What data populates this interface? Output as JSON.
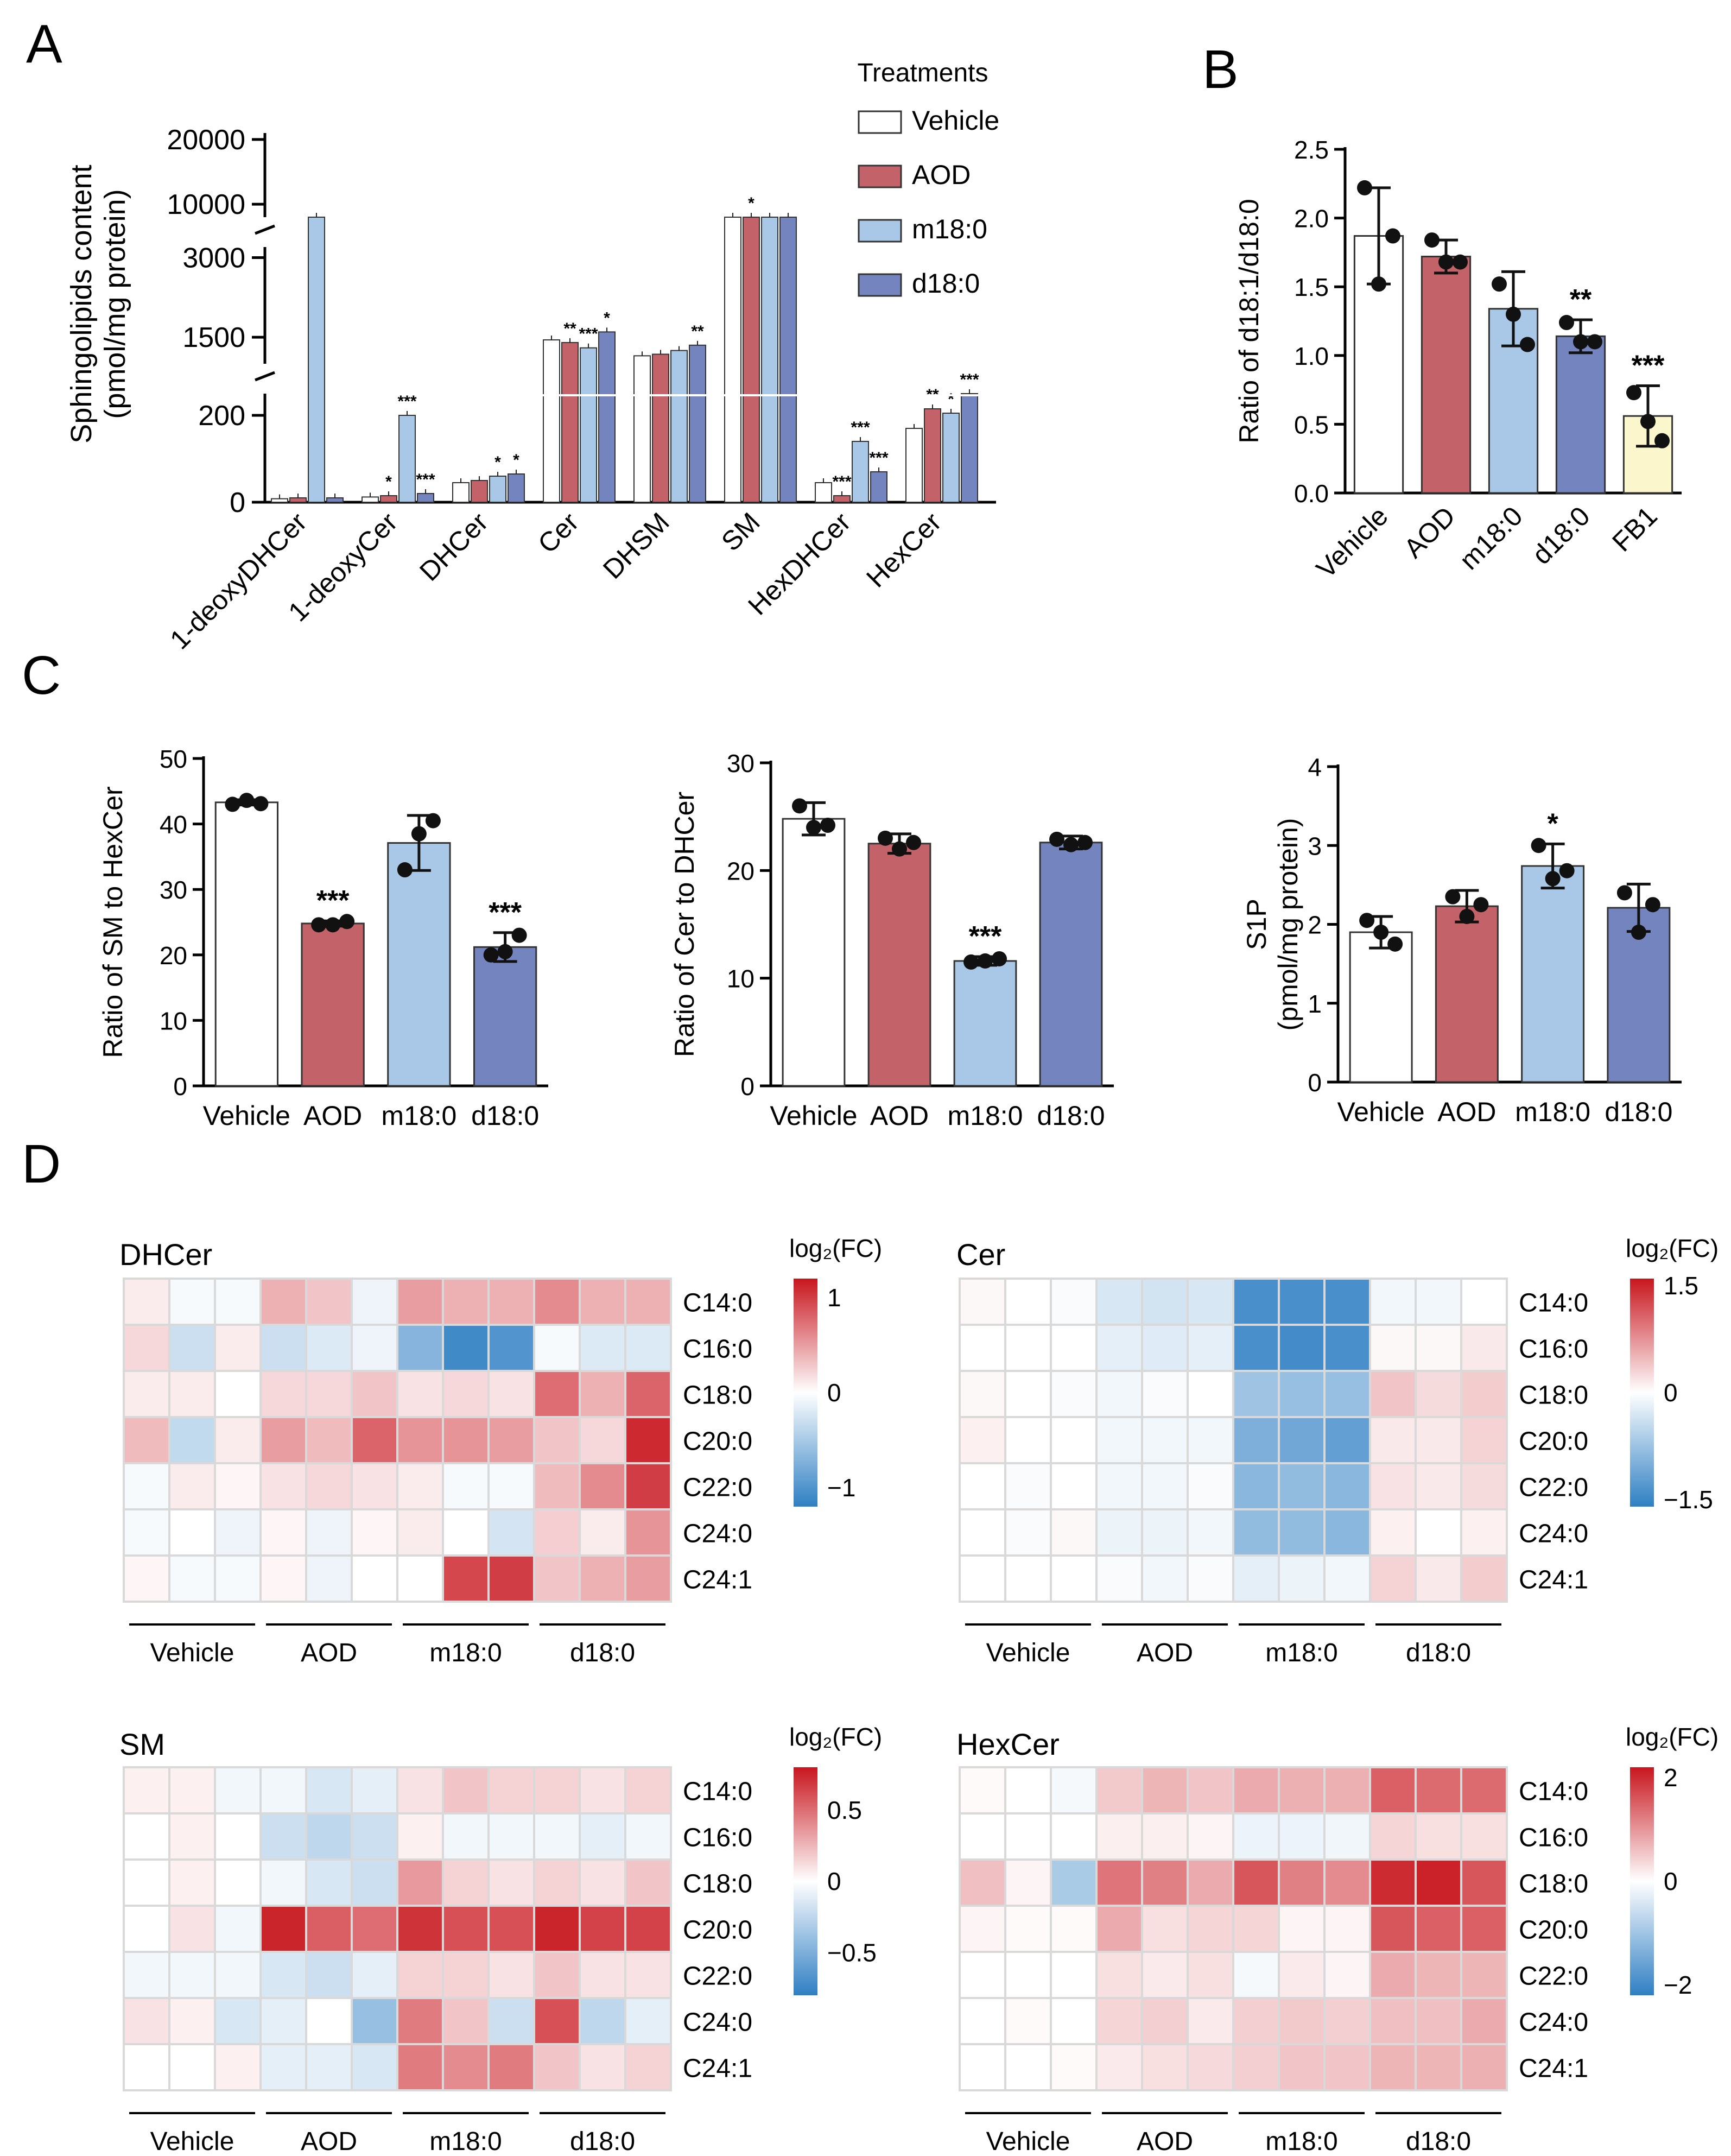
{
  "panel_labels": {
    "A": "A",
    "B": "B",
    "C": "C",
    "D": "D"
  },
  "colors": {
    "vehicle": "#ffffff",
    "aod": "#c4626a",
    "m18": "#a9c7e6",
    "d18": "#7484bf",
    "fb1": "#fbf6cc",
    "bar_stroke": "#333333",
    "heat_pos": "#c8161e",
    "heat_neg": "#2f7fc3",
    "heat_mid": "#ffffff",
    "grid": "#d9d9d9"
  },
  "chart_data": [
    {
      "id": "A",
      "type": "bar",
      "title": "",
      "ylabel_line1": "Sphingolipids content",
      "ylabel_line2": "(pmol/mg protein)",
      "legend_title": "Treatments",
      "series_names": [
        "Vehicle",
        "AOD",
        "m18:0",
        "d18:0"
      ],
      "categories": [
        "1-deoxyDHCer",
        "1-deoxyCer",
        "DHCer",
        "Cer",
        "DHSM",
        "SM",
        "HexDHCer",
        "HexCer"
      ],
      "broken_axis_segments": [
        {
          "range": [
            0,
            250
          ],
          "ticks": [
            0,
            200
          ]
        },
        {
          "range": [
            1000,
            3200
          ],
          "ticks": [
            1500,
            3000
          ]
        },
        {
          "range": [
            8000,
            21000
          ],
          "ticks": [
            10000,
            20000
          ]
        }
      ],
      "series": [
        {
          "name": "Vehicle",
          "values": [
            8,
            12,
            45,
            1450,
            1150,
            7000,
            45,
            170
          ]
        },
        {
          "name": "AOD",
          "values": [
            10,
            15,
            50,
            1400,
            1180,
            6800,
            15,
            215
          ]
        },
        {
          "name": "m18:0",
          "values": [
            7000,
            200,
            60,
            1300,
            1250,
            7200,
            140,
            205
          ]
        },
        {
          "name": "d18:0",
          "values": [
            10,
            20,
            65,
            1600,
            1350,
            6900,
            70,
            275
          ]
        }
      ],
      "significance": [
        [
          "",
          "",
          "",
          ""
        ],
        [
          "",
          "*",
          "***",
          "***"
        ],
        [
          "",
          "",
          "*",
          "*"
        ],
        [
          "",
          "**",
          "***",
          "*"
        ],
        [
          "",
          "",
          "",
          "**"
        ],
        [
          "",
          "*",
          "",
          ""
        ],
        [
          "",
          "***",
          "***",
          "***"
        ],
        [
          "",
          "**",
          "*",
          "***"
        ]
      ]
    },
    {
      "id": "B",
      "type": "bar",
      "ylabel": "Ratio of d18:1/d18:0",
      "categories": [
        "Vehicle",
        "AOD",
        "m18:0",
        "d18:0",
        "FB1"
      ],
      "values": [
        1.87,
        1.72,
        1.34,
        1.14,
        0.56
      ],
      "errors": [
        0.35,
        0.12,
        0.27,
        0.12,
        0.22
      ],
      "points": [
        [
          2.22,
          1.52,
          1.87
        ],
        [
          1.84,
          1.68,
          1.68
        ],
        [
          1.52,
          1.3,
          1.08
        ],
        [
          1.24,
          1.1,
          1.1
        ],
        [
          0.73,
          0.52,
          0.38
        ]
      ],
      "significance": [
        "",
        "",
        "",
        "**",
        "***"
      ],
      "ylim": [
        0,
        2.5
      ],
      "yticks": [
        "0.0",
        "0.5",
        "1.0",
        "1.5",
        "2.0",
        "2.5"
      ]
    },
    {
      "id": "C1",
      "type": "bar",
      "ylabel": "Ratio of SM to HexCer",
      "categories": [
        "Vehicle",
        "AOD",
        "m18:0",
        "d18:0"
      ],
      "values": [
        43.3,
        24.8,
        37.1,
        21.2
      ],
      "errors": [
        0.4,
        0.4,
        4.2,
        2.2
      ],
      "points": [
        [
          43.0,
          43.6,
          43.1
        ],
        [
          24.6,
          24.6,
          25.1
        ],
        [
          33.0,
          38.5,
          40.5
        ],
        [
          20.0,
          20.5,
          23.0
        ]
      ],
      "significance": [
        "",
        "***",
        "",
        "***"
      ],
      "ylim": [
        0,
        50
      ],
      "yticks": [
        "0",
        "10",
        "20",
        "30",
        "40",
        "50"
      ]
    },
    {
      "id": "C2",
      "type": "bar",
      "ylabel": "Ratio of Cer to DHCer",
      "categories": [
        "Vehicle",
        "AOD",
        "m18:0",
        "d18:0"
      ],
      "values": [
        24.8,
        22.5,
        11.6,
        22.6
      ],
      "errors": [
        1.5,
        0.9,
        0.4,
        0.6
      ],
      "points": [
        [
          26.0,
          24.0,
          24.2
        ],
        [
          23.0,
          22.0,
          22.6
        ],
        [
          11.5,
          11.6,
          11.8
        ],
        [
          22.9,
          22.4,
          22.6
        ]
      ],
      "significance": [
        "",
        "",
        "***",
        ""
      ],
      "ylim": [
        0,
        30
      ],
      "yticks": [
        "0",
        "10",
        "20",
        "30"
      ]
    },
    {
      "id": "C3",
      "type": "bar",
      "ylabel_line1": "S1P",
      "ylabel_line2": "(pmol/mg protein)",
      "categories": [
        "Vehicle",
        "AOD",
        "m18:0",
        "d18:0"
      ],
      "values": [
        1.9,
        2.23,
        2.74,
        2.21
      ],
      "errors": [
        0.2,
        0.2,
        0.28,
        0.3
      ],
      "points": [
        [
          2.05,
          1.9,
          1.75
        ],
        [
          2.35,
          2.1,
          2.25
        ],
        [
          3.0,
          2.58,
          2.68
        ],
        [
          2.4,
          1.9,
          2.25
        ]
      ],
      "significance": [
        "",
        "",
        "*",
        ""
      ],
      "ylim": [
        0,
        4
      ],
      "yticks": [
        "0",
        "1",
        "2",
        "3",
        "4"
      ]
    },
    {
      "id": "D-DHCer",
      "type": "heatmap",
      "title": "DHCer",
      "rows": [
        "C14:0",
        "C16:0",
        "C18:0",
        "C20:0",
        "C22:0",
        "C24:0",
        "C24:1"
      ],
      "groups": [
        "Vehicle",
        "AOD",
        "m18:0",
        "d18:0"
      ],
      "scale_label": "log₂(FC)",
      "scale_max": 1.2,
      "scale_ticks": [
        "1",
        "0",
        "−1"
      ],
      "scale_tick_values": [
        1,
        0,
        -1
      ],
      "values": [
        [
          0.1,
          -0.05,
          -0.05,
          0.4,
          0.3,
          -0.1,
          0.5,
          0.4,
          0.4,
          0.6,
          0.4,
          0.4
        ],
        [
          0.2,
          -0.3,
          0.1,
          -0.3,
          -0.2,
          -0.1,
          -0.7,
          -1.1,
          -1.0,
          -0.05,
          -0.2,
          -0.2
        ],
        [
          0.1,
          0.1,
          0.0,
          0.2,
          0.2,
          0.3,
          0.15,
          0.2,
          0.15,
          0.75,
          0.4,
          0.8
        ],
        [
          0.35,
          -0.35,
          0.1,
          0.5,
          0.35,
          0.8,
          0.55,
          0.55,
          0.5,
          0.3,
          0.2,
          1.1
        ],
        [
          -0.05,
          0.1,
          0.05,
          0.15,
          0.2,
          0.15,
          0.1,
          -0.05,
          -0.05,
          0.35,
          0.6,
          1.0
        ],
        [
          -0.05,
          0.0,
          -0.1,
          0.05,
          -0.1,
          0.05,
          0.1,
          0.0,
          -0.25,
          0.25,
          0.1,
          0.55
        ],
        [
          0.05,
          -0.05,
          -0.05,
          0.05,
          -0.1,
          0.0,
          0.0,
          0.95,
          1.0,
          0.3,
          0.4,
          0.5
        ]
      ]
    },
    {
      "id": "D-Cer",
      "type": "heatmap",
      "title": "Cer",
      "rows": [
        "C14:0",
        "C16:0",
        "C18:0",
        "C20:0",
        "C22:0",
        "C24:0",
        "C24:1"
      ],
      "groups": [
        "Vehicle",
        "AOD",
        "m18:0",
        "d18:0"
      ],
      "scale_label": "log₂(FC)",
      "scale_max": 1.6,
      "scale_ticks": [
        "1.5",
        "0",
        "−1.5"
      ],
      "scale_tick_values": [
        1.5,
        0,
        -1.5
      ],
      "values": [
        [
          0.05,
          0.0,
          -0.05,
          -0.3,
          -0.35,
          -0.3,
          -1.4,
          -1.4,
          -1.4,
          -0.1,
          -0.1,
          0.0
        ],
        [
          0.0,
          0.0,
          0.0,
          -0.2,
          -0.25,
          -0.2,
          -1.4,
          -1.45,
          -1.4,
          0.05,
          0.05,
          0.15
        ],
        [
          0.05,
          0.0,
          -0.05,
          -0.1,
          -0.05,
          0.0,
          -0.75,
          -0.8,
          -0.8,
          0.4,
          0.25,
          0.35
        ],
        [
          0.1,
          0.0,
          0.0,
          -0.1,
          -0.1,
          -0.1,
          -1.0,
          -1.1,
          -1.2,
          0.15,
          0.15,
          0.3
        ],
        [
          0.0,
          -0.05,
          0.0,
          -0.1,
          -0.1,
          -0.05,
          -0.9,
          -0.85,
          -0.9,
          0.2,
          0.15,
          0.25
        ],
        [
          0.0,
          -0.05,
          0.05,
          -0.15,
          -0.15,
          -0.1,
          -0.85,
          -0.85,
          -0.9,
          0.1,
          0.0,
          0.1
        ],
        [
          0.0,
          0.0,
          0.0,
          -0.05,
          -0.1,
          -0.05,
          -0.2,
          -0.15,
          -0.1,
          0.3,
          0.15,
          0.35
        ]
      ]
    },
    {
      "id": "D-SM",
      "type": "heatmap",
      "title": "SM",
      "rows": [
        "C14:0",
        "C16:0",
        "C18:0",
        "C20:0",
        "C22:0",
        "C24:0",
        "C24:1"
      ],
      "groups": [
        "Vehicle",
        "AOD",
        "m18:0",
        "d18:0"
      ],
      "scale_label": "log₂(FC)",
      "scale_max": 0.8,
      "scale_ticks": [
        "0.5",
        "0",
        "−0.5"
      ],
      "scale_tick_values": [
        0.5,
        0,
        -0.5
      ],
      "values": [
        [
          0.05,
          0.05,
          -0.05,
          -0.05,
          -0.15,
          -0.1,
          0.1,
          0.2,
          0.15,
          0.15,
          0.1,
          0.15
        ],
        [
          0.0,
          0.05,
          0.0,
          -0.2,
          -0.25,
          -0.2,
          0.05,
          -0.05,
          -0.05,
          -0.05,
          -0.1,
          -0.05
        ],
        [
          0.0,
          0.05,
          0.0,
          -0.05,
          -0.15,
          -0.2,
          0.35,
          0.15,
          0.1,
          0.15,
          0.1,
          0.2
        ],
        [
          0.0,
          0.1,
          -0.05,
          0.75,
          0.55,
          0.5,
          0.7,
          0.6,
          0.6,
          0.75,
          0.65,
          0.65
        ],
        [
          -0.05,
          -0.05,
          -0.05,
          -0.15,
          -0.2,
          -0.1,
          0.15,
          0.15,
          0.1,
          0.2,
          0.1,
          0.1
        ],
        [
          0.1,
          0.05,
          -0.15,
          -0.1,
          0.0,
          -0.4,
          0.45,
          0.2,
          -0.2,
          0.6,
          -0.25,
          -0.1
        ],
        [
          0.0,
          0.0,
          0.05,
          -0.1,
          -0.1,
          -0.15,
          0.45,
          0.4,
          0.45,
          0.2,
          0.1,
          0.15
        ]
      ]
    },
    {
      "id": "D-HexCer",
      "type": "heatmap",
      "title": "HexCer",
      "rows": [
        "C14:0",
        "C16:0",
        "C18:0",
        "C20:0",
        "C22:0",
        "C24:0",
        "C24:1"
      ],
      "groups": [
        "Vehicle",
        "AOD",
        "m18:0",
        "d18:0"
      ],
      "scale_label": "log₂(FC)",
      "scale_max": 2.2,
      "scale_ticks": [
        "2",
        "0",
        "−2"
      ],
      "scale_tick_values": [
        2,
        0,
        -2
      ],
      "values": [
        [
          0.05,
          0.0,
          -0.1,
          0.5,
          0.7,
          0.55,
          0.8,
          0.75,
          0.75,
          1.5,
          1.4,
          1.4
        ],
        [
          0.0,
          0.0,
          0.0,
          0.15,
          0.15,
          0.1,
          -0.2,
          -0.2,
          -0.15,
          0.4,
          0.3,
          0.3
        ],
        [
          0.6,
          0.1,
          -0.9,
          1.3,
          1.2,
          0.8,
          1.6,
          1.2,
          1.1,
          2.0,
          2.1,
          1.6
        ],
        [
          0.1,
          0.05,
          0.05,
          0.8,
          0.3,
          0.4,
          0.4,
          0.1,
          0.1,
          1.6,
          1.5,
          1.5
        ],
        [
          0.0,
          0.0,
          0.0,
          0.3,
          0.2,
          0.3,
          -0.1,
          0.2,
          0.1,
          0.8,
          0.7,
          0.7
        ],
        [
          0.0,
          0.05,
          0.0,
          0.4,
          0.45,
          0.2,
          0.45,
          0.5,
          0.45,
          0.6,
          0.6,
          0.8
        ],
        [
          0.0,
          0.0,
          0.05,
          0.2,
          0.3,
          0.35,
          0.45,
          0.55,
          0.55,
          0.7,
          0.7,
          0.75
        ]
      ]
    }
  ]
}
